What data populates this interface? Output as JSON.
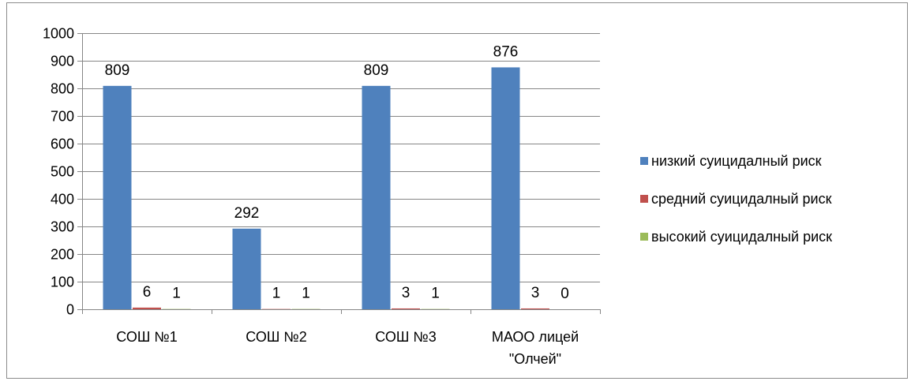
{
  "colors": {
    "series": [
      "#4f81bd",
      "#c0504d",
      "#9bbb59"
    ],
    "grid": "#868686",
    "frame": "#8c8c8c"
  },
  "chart_data": {
    "type": "bar",
    "categories": [
      "СОШ №1",
      "СОШ №2",
      "СОШ №3",
      "МАОО лицей \"Олчей\""
    ],
    "category_lines": [
      [
        "СОШ №1"
      ],
      [
        "СОШ №2"
      ],
      [
        "СОШ №3"
      ],
      [
        "МАОО лицей",
        "\"Олчей\""
      ]
    ],
    "series": [
      {
        "name": "низкий суицидалный риск",
        "values": [
          809,
          292,
          809,
          876
        ]
      },
      {
        "name": "средний суицидалный риск",
        "values": [
          6,
          1,
          3,
          3
        ]
      },
      {
        "name": "высокий суицидалный риск",
        "values": [
          1,
          1,
          1,
          0
        ]
      }
    ],
    "ylim": [
      0,
      1000
    ],
    "yticks": [
      0,
      100,
      200,
      300,
      400,
      500,
      600,
      700,
      800,
      900,
      1000
    ],
    "grid": true,
    "legend": "right",
    "data_labels": true
  }
}
